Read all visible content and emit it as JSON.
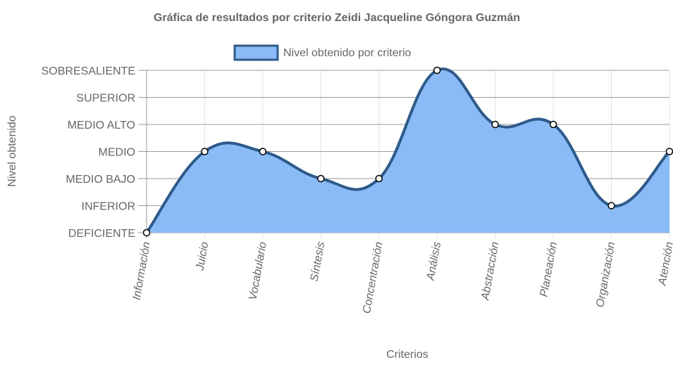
{
  "chart_data": {
    "type": "area",
    "title": "Gráfica de resultados por criterio Zeidi Jacqueline Góngora Guzmán",
    "xlabel": "Criterios",
    "ylabel": "Nivel obtenido",
    "categories": [
      "Información",
      "Juicio",
      "Vocabulario",
      "Síntesis",
      "Concentración",
      "Análisis",
      "Abstracción",
      "Planeación",
      "Organización",
      "Atención"
    ],
    "y_levels": [
      "DEFICIENTE",
      "INFERIOR",
      "MEDIO BAJO",
      "MEDIO",
      "MEDIO ALTO",
      "SUPERIOR",
      "SOBRESALIENTE"
    ],
    "series": [
      {
        "name": "Nivel obtenido por criterio",
        "values": [
          0,
          3,
          3,
          2,
          2,
          6,
          4,
          4,
          1,
          3
        ],
        "value_labels": [
          "DEFICIENTE",
          "MEDIO",
          "MEDIO",
          "MEDIO BAJO",
          "MEDIO BAJO",
          "SOBRESALIENTE",
          "MEDIO ALTO",
          "MEDIO ALTO",
          "INFERIOR",
          "MEDIO"
        ]
      }
    ],
    "ylim": [
      0,
      6
    ],
    "grid": true,
    "legend_position": "top",
    "colors": {
      "fill": "#8bbbf7",
      "line": "#2e5a8a",
      "point_fill": "#ffffff",
      "point_stroke": "#000000",
      "grid": "#e0e0e0",
      "grid_major": "#999999"
    }
  }
}
